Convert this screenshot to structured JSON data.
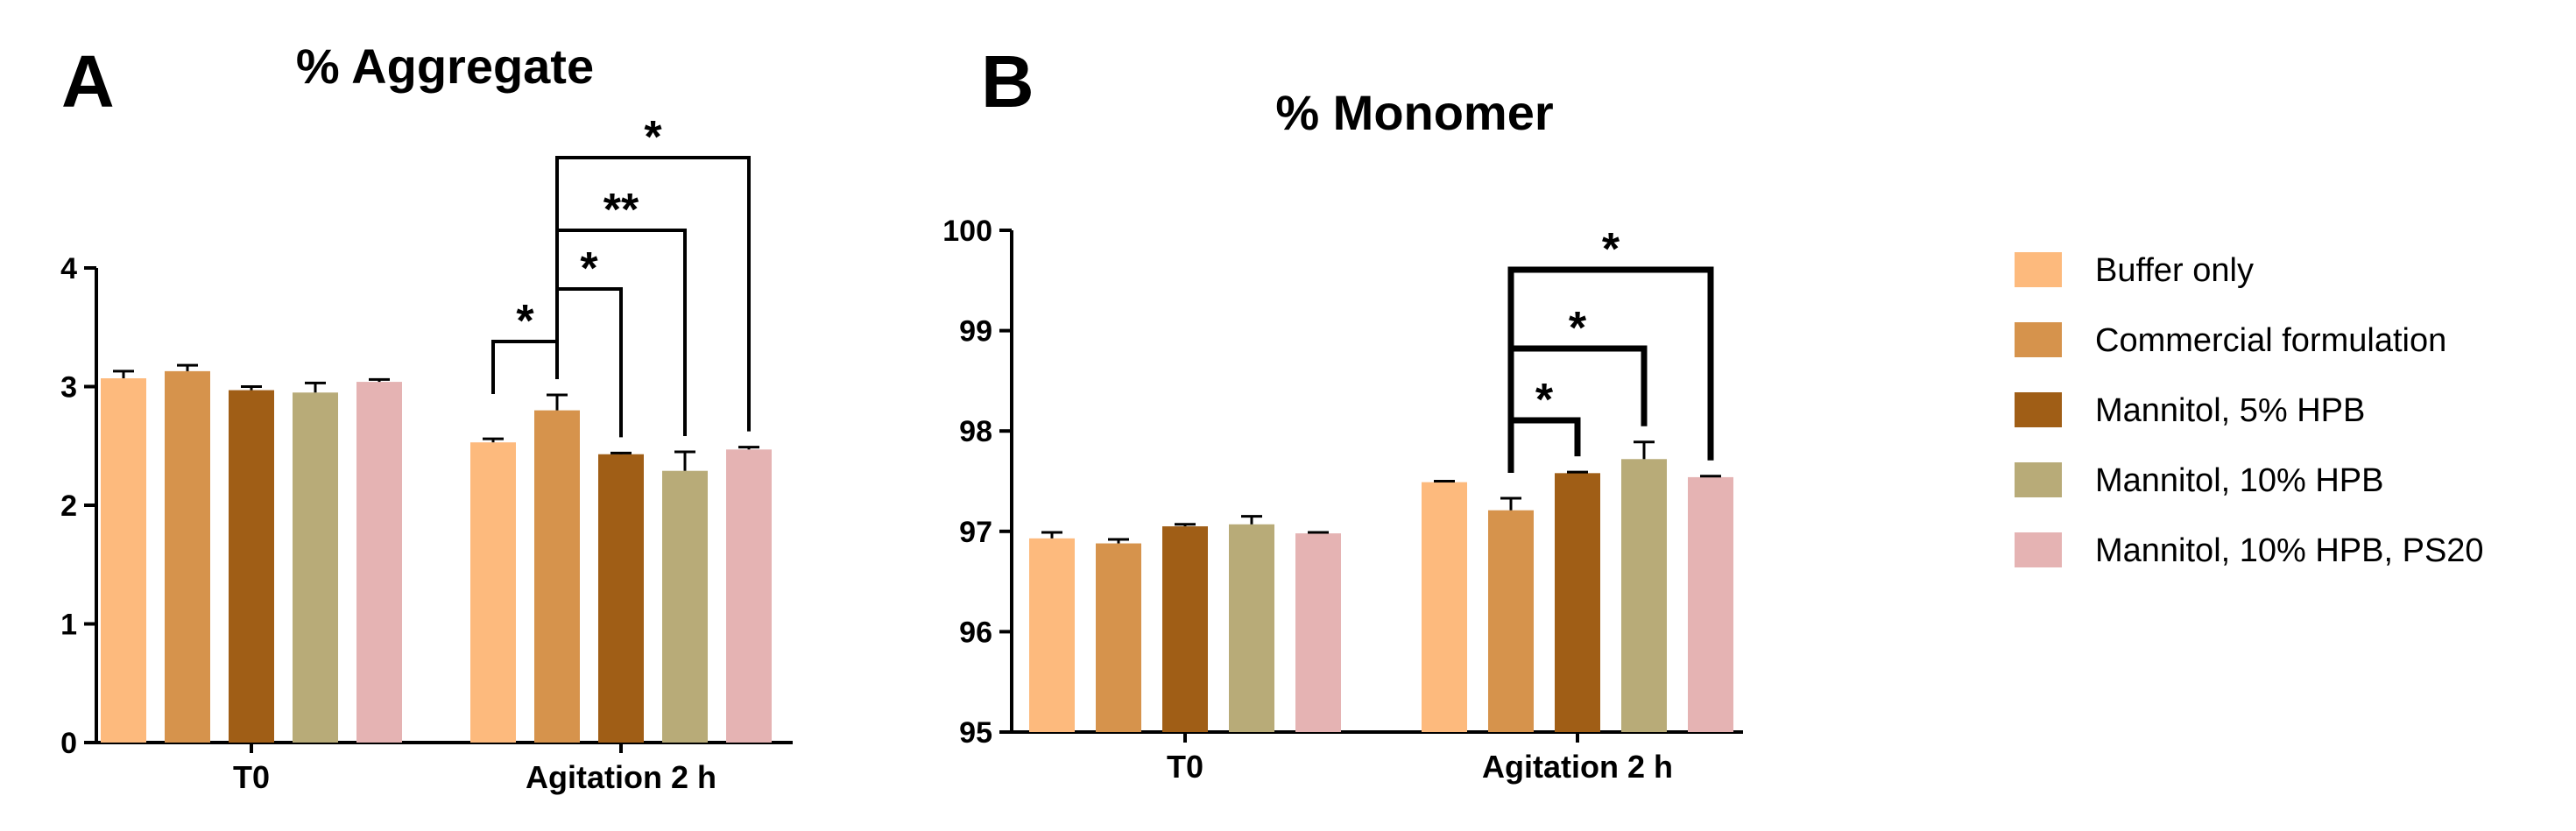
{
  "legend": [
    {
      "label": "Buffer only",
      "color": "#FDBA7D"
    },
    {
      "label": "Commercial formulation",
      "color": "#D6934C"
    },
    {
      "label": "Mannitol, 5% HPB",
      "color": "#A05E16"
    },
    {
      "label": "Mannitol, 10% HPB",
      "color": "#B8AB78"
    },
    {
      "label": "Mannitol, 10% HPB, PS20",
      "color": "#E5B3B3"
    }
  ],
  "chart_data": [
    {
      "type": "bar",
      "panel": "A",
      "title": "% Aggregate",
      "categories": [
        "T0",
        "Agitation 2 h"
      ],
      "ylim": [
        0,
        4
      ],
      "yticks": [
        0,
        1,
        2,
        3,
        4
      ],
      "series": [
        {
          "name": "Buffer only",
          "values": [
            3.07,
            2.53
          ],
          "errors": [
            0.06,
            0.03
          ]
        },
        {
          "name": "Commercial formulation",
          "values": [
            3.13,
            2.8
          ],
          "errors": [
            0.05,
            0.13
          ]
        },
        {
          "name": "Mannitol, 5% HPB",
          "values": [
            2.97,
            2.43
          ],
          "errors": [
            0.03,
            0.01
          ]
        },
        {
          "name": "Mannitol, 10% HPB",
          "values": [
            2.95,
            2.29
          ],
          "errors": [
            0.08,
            0.16
          ]
        },
        {
          "name": "Mannitol, 10% HPB, PS20",
          "values": [
            3.04,
            2.47
          ],
          "errors": [
            0.02,
            0.02
          ]
        }
      ],
      "annotations": [
        {
          "category": "Agitation 2 h",
          "from": 0,
          "to": 1,
          "label": "*"
        },
        {
          "category": "Agitation 2 h",
          "from": 1,
          "to": 2,
          "label": "*"
        },
        {
          "category": "Agitation 2 h",
          "from": 1,
          "to": 3,
          "label": "**"
        },
        {
          "category": "Agitation 2 h",
          "from": 1,
          "to": 4,
          "label": "*"
        }
      ],
      "grid": false
    },
    {
      "type": "bar",
      "panel": "B",
      "title": "% Monomer",
      "categories": [
        "T0",
        "Agitation 2 h"
      ],
      "ylim": [
        95,
        100
      ],
      "yticks": [
        95,
        96,
        97,
        98,
        99,
        100
      ],
      "series": [
        {
          "name": "Buffer only",
          "values": [
            96.93,
            97.49
          ],
          "errors": [
            0.06,
            0.01
          ]
        },
        {
          "name": "Commercial formulation",
          "values": [
            96.88,
            97.21
          ],
          "errors": [
            0.04,
            0.12
          ]
        },
        {
          "name": "Mannitol, 5% HPB",
          "values": [
            97.05,
            97.58
          ],
          "errors": [
            0.02,
            0.01
          ]
        },
        {
          "name": "Mannitol, 10% HPB",
          "values": [
            97.07,
            97.72
          ],
          "errors": [
            0.08,
            0.17
          ]
        },
        {
          "name": "Mannitol, 10% HPB, PS20",
          "values": [
            96.98,
            97.54
          ],
          "errors": [
            0.01,
            0.01
          ]
        }
      ],
      "annotations": [
        {
          "category": "Agitation 2 h",
          "from": 1,
          "to": 2,
          "label": "*"
        },
        {
          "category": "Agitation 2 h",
          "from": 1,
          "to": 3,
          "label": "*"
        },
        {
          "category": "Agitation 2 h",
          "from": 1,
          "to": 4,
          "label": "*"
        }
      ],
      "grid": false
    }
  ]
}
